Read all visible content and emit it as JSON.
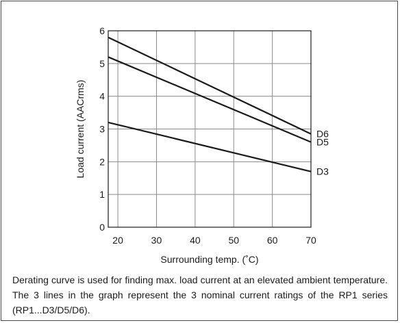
{
  "chart_data": {
    "type": "line",
    "xlabel": "Surrounding temp. (˚C)",
    "ylabel": "Load current (AACrms)",
    "xlim": [
      17.5,
      70
    ],
    "ylim": [
      0,
      6
    ],
    "x_ticks": [
      20,
      30,
      40,
      50,
      60,
      70
    ],
    "y_ticks": [
      0,
      1,
      2,
      3,
      4,
      5,
      6
    ],
    "x_tick_labels": [
      "20",
      "30",
      "40",
      "50",
      "60",
      "70"
    ],
    "y_tick_labels": [
      "0",
      "1",
      "2",
      "3",
      "4",
      "5",
      "6"
    ],
    "grid": true,
    "series": [
      {
        "name": "D6",
        "points": [
          [
            17.5,
            5.8
          ],
          [
            70,
            2.85
          ]
        ]
      },
      {
        "name": "D5",
        "points": [
          [
            17.5,
            5.2
          ],
          [
            70,
            2.6
          ]
        ]
      },
      {
        "name": "D3",
        "points": [
          [
            17.5,
            3.2
          ],
          [
            70,
            1.7
          ]
        ]
      }
    ]
  },
  "caption": "Derating curve is used for finding max. load current at an elevated ambient temperature. The 3 lines in the graph represent the 3 nominal current ratings of the RP1 series (RP1...D3/D5/D6)."
}
